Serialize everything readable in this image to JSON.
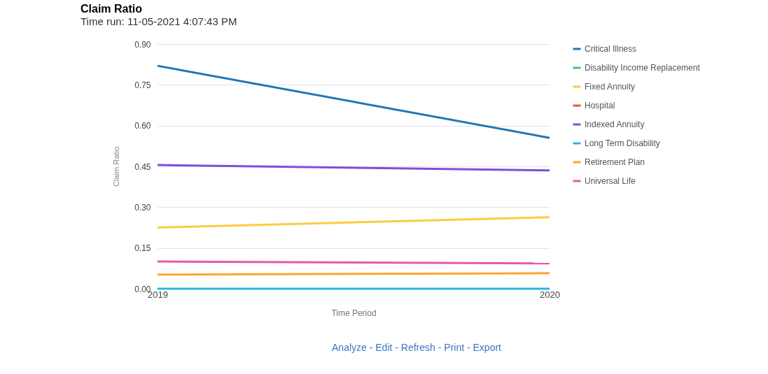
{
  "chart_data": {
    "type": "line",
    "title": "Claim Ratio",
    "subtitle": "Time run: 11-05-2021 4:07:43 PM",
    "xlabel": "Time Period",
    "ylabel": "Claim Ratio",
    "x": [
      2019,
      2020
    ],
    "xlim": [
      2019,
      2020
    ],
    "xticks": [
      2019,
      2020
    ],
    "series": [
      {
        "name": "Critical Illness",
        "color": "#1f77b4",
        "values": [
          0.82,
          0.555
        ]
      },
      {
        "name": "Disability Income Replacement",
        "color": "#4cc46a",
        "values": [
          null,
          null
        ]
      },
      {
        "name": "Fixed Annuity",
        "color": "#fccc44",
        "values": [
          0.225,
          0.263
        ]
      },
      {
        "name": "Hospital",
        "color": "#f0553c",
        "values": [
          null,
          null
        ]
      },
      {
        "name": "Indexed Annuity",
        "color": "#7e4fd6",
        "values": [
          0.455,
          0.435
        ]
      },
      {
        "name": "Long Term Disability",
        "color": "#2cb4e4",
        "values": [
          0,
          0
        ]
      },
      {
        "name": "Retirement Plan",
        "color": "#fca532",
        "values": [
          0.052,
          0.057
        ]
      },
      {
        "name": "Universal Life",
        "color": "#e65aa8",
        "values": [
          0.1,
          0.093
        ]
      }
    ],
    "ylim": [
      0,
      0.9
    ],
    "yticks": [
      {
        "value": 0,
        "label": "0.00"
      },
      {
        "value": 0.15,
        "label": "0.15"
      },
      {
        "value": 0.3,
        "label": "0.30"
      },
      {
        "value": 0.45,
        "label": "0.45"
      },
      {
        "value": 0.6,
        "label": "0.60"
      },
      {
        "value": 0.75,
        "label": "0.75"
      },
      {
        "value": 0.9,
        "label": "0.90"
      }
    ],
    "grid": "y",
    "legend": "right",
    "marker": "none",
    "line_style": "solid",
    "annotations": [
      "Analyze - Edit - Refresh - Print - Export"
    ]
  }
}
